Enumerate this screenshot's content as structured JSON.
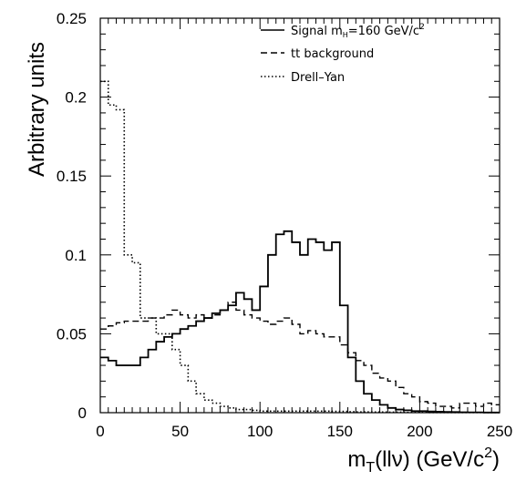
{
  "chart_data": {
    "type": "line",
    "drawstyle": "histogram-step",
    "xlim": [
      0,
      250
    ],
    "ylim": [
      0,
      0.25
    ],
    "bin_width": 5,
    "x_ticks": [
      0,
      50,
      100,
      150,
      200,
      250
    ],
    "x_tick_labels": [
      "0",
      "50",
      "100",
      "150",
      "200",
      "250"
    ],
    "y_ticks": [
      0,
      0.05,
      0.1,
      0.15,
      0.2,
      0.25
    ],
    "y_tick_labels": [
      "0",
      "0.05",
      "0.1",
      "0.15",
      "0.2",
      "0.25"
    ],
    "xlabel": {
      "pre": "m",
      "sub": "T",
      "mid": "(llν) (GeV/c",
      "sup": "2",
      "post": ")"
    },
    "ylabel": "Arbitrary units",
    "legend_placement": "top-right",
    "grid": false,
    "series": [
      {
        "key": "signal",
        "name": "Signal m_H=160 GeV/c²",
        "name_parts": {
          "a": "Signal m",
          "sub": "H",
          "b": "=160 GeV/c",
          "sup": "2"
        },
        "style": "solid",
        "values": [
          0.035,
          0.033,
          0.03,
          0.03,
          0.03,
          0.035,
          0.04,
          0.045,
          0.048,
          0.05,
          0.053,
          0.055,
          0.058,
          0.06,
          0.063,
          0.065,
          0.068,
          0.076,
          0.072,
          0.065,
          0.08,
          0.1,
          0.113,
          0.115,
          0.108,
          0.1,
          0.11,
          0.108,
          0.103,
          0.108,
          0.068,
          0.035,
          0.02,
          0.012,
          0.008,
          0.005,
          0.003,
          0.002,
          0.0015,
          0.001,
          0.001,
          0.0008,
          0.0006,
          0.0005,
          0.0004,
          0.0003,
          0.0002,
          0.0002,
          0.0001,
          0.0001
        ]
      },
      {
        "key": "ttbar",
        "name": "tt background",
        "style": "dashed",
        "values": [
          0.053,
          0.055,
          0.057,
          0.058,
          0.058,
          0.058,
          0.06,
          0.06,
          0.062,
          0.065,
          0.062,
          0.06,
          0.062,
          0.06,
          0.062,
          0.065,
          0.07,
          0.065,
          0.062,
          0.06,
          0.058,
          0.056,
          0.058,
          0.06,
          0.056,
          0.05,
          0.052,
          0.05,
          0.048,
          0.048,
          0.043,
          0.038,
          0.033,
          0.03,
          0.025,
          0.022,
          0.02,
          0.016,
          0.012,
          0.01,
          0.007,
          0.006,
          0.004,
          0.004,
          0.003,
          0.006,
          0.006,
          0.004,
          0.006,
          0.005
        ]
      },
      {
        "key": "drellyan",
        "name": "Drell–Yan",
        "style": "dotted",
        "values": [
          0.21,
          0.195,
          0.192,
          0.1,
          0.095,
          0.06,
          0.06,
          0.05,
          0.05,
          0.04,
          0.03,
          0.02,
          0.012,
          0.008,
          0.006,
          0.004,
          0.003,
          0.002,
          0.002,
          0.0015,
          0.001,
          0.001,
          0.001,
          0.001,
          0.001,
          0.001,
          0.001,
          0.001,
          0.001,
          0.0008,
          0.0008,
          0.0006,
          0.0005,
          0.0005,
          0.0004,
          0.0004,
          0.0003,
          0.0003,
          0.0002,
          0.0002,
          0.0002,
          0.0001,
          0.0001,
          0.0001,
          0.0001,
          0.0001,
          0.0001,
          0.0001,
          0.0001,
          0.0001
        ]
      }
    ]
  }
}
